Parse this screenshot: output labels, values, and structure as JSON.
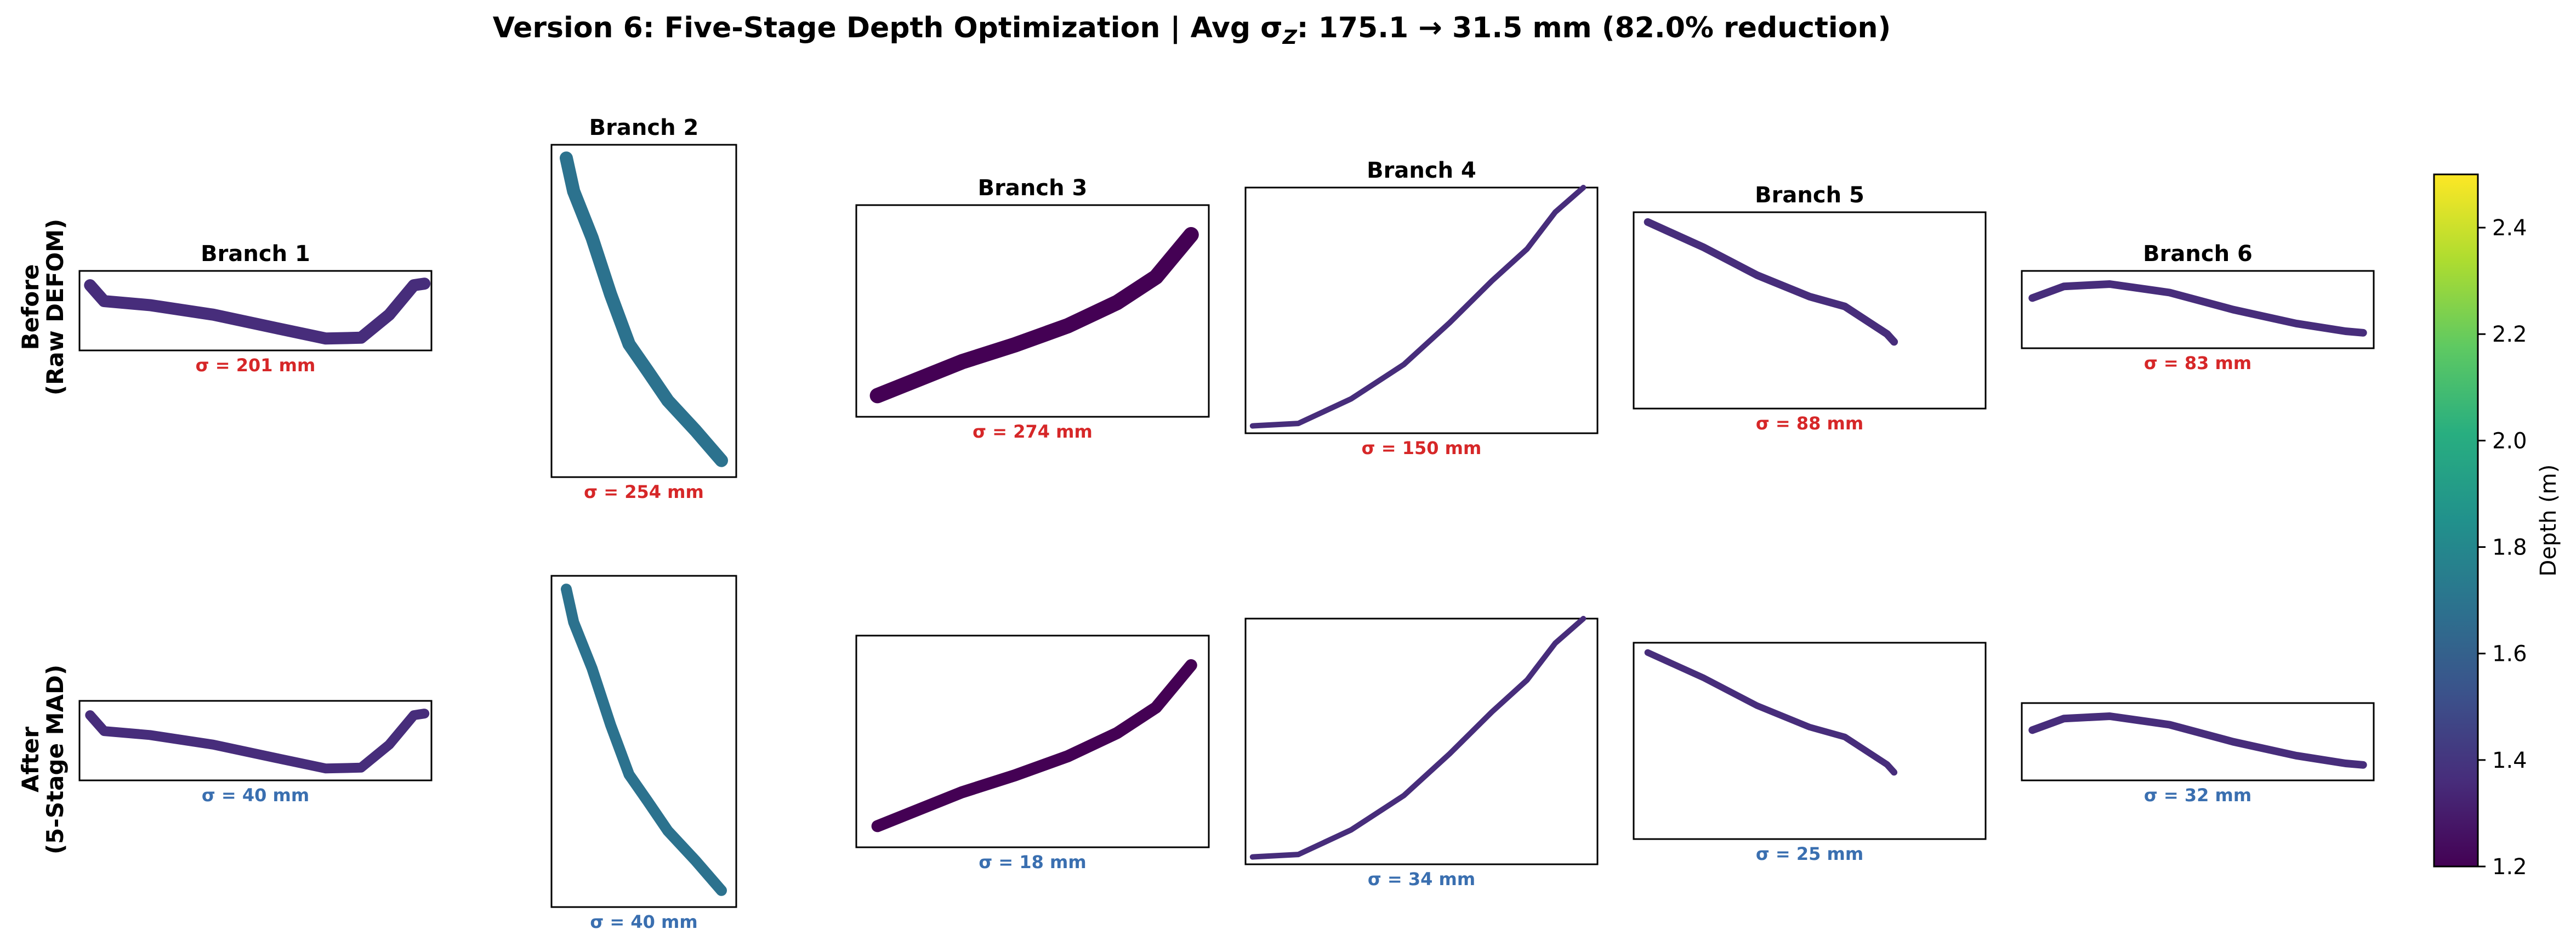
{
  "figure": {
    "title": "Version 6: Five-Stage Depth Optimization  |  Avg σ",
    "title_subscript": "Z",
    "title_suffix": ": 175.1 → 31.5 mm  (82.0% reduction)"
  },
  "rows": [
    {
      "label_line1": "Before",
      "label_line2": "(Raw DEFOM)"
    },
    {
      "label_line1": "After",
      "label_line2": "(5-Stage MAD)"
    }
  ],
  "colors": {
    "sigma_before": "#d62728",
    "sigma_after": "#3a6fb0",
    "colormap": [
      "#440154",
      "#472d7b",
      "#3b528b",
      "#2c728e",
      "#21918c",
      "#28ae80",
      "#5ec962",
      "#addc30",
      "#fde725"
    ]
  },
  "chart_data": {
    "type": "scatter",
    "title": "Version 6: Five-Stage Depth Optimization  |  Avg σZ: 175.1 → 31.5 mm  (82.0% reduction)",
    "avg_sigma_z_before_mm": 175.1,
    "avg_sigma_z_after_mm": 31.5,
    "reduction_pct": 82.0,
    "colorbar": {
      "label": "Depth (m)",
      "range": [
        1.2,
        2.5
      ],
      "ticks": [
        "1.2",
        "1.4",
        "1.6",
        "1.8",
        "2.0",
        "2.2",
        "2.4"
      ]
    },
    "branches": [
      {
        "name": "Branch 1",
        "sigma_before_mm": 201,
        "sigma_after_mm": 40,
        "sigma_before_label": "σ = 201 mm",
        "sigma_after_label": "σ = 40 mm",
        "depth_before_m": 1.38,
        "depth_after_m": 1.36,
        "curve": [
          [
            0.03,
            0.18
          ],
          [
            0.07,
            0.38
          ],
          [
            0.2,
            0.43
          ],
          [
            0.38,
            0.55
          ],
          [
            0.56,
            0.72
          ],
          [
            0.7,
            0.85
          ],
          [
            0.8,
            0.84
          ],
          [
            0.88,
            0.55
          ],
          [
            0.95,
            0.18
          ],
          [
            0.98,
            0.16
          ]
        ]
      },
      {
        "name": "Branch 2",
        "sigma_before_mm": 254,
        "sigma_after_mm": 40,
        "sigma_before_label": "σ = 254 mm",
        "sigma_after_label": "σ = 40 mm",
        "depth_before_m": 1.62,
        "depth_after_m": 1.62,
        "curve": [
          [
            0.08,
            0.04
          ],
          [
            0.12,
            0.14
          ],
          [
            0.22,
            0.28
          ],
          [
            0.32,
            0.45
          ],
          [
            0.42,
            0.6
          ],
          [
            0.52,
            0.68
          ],
          [
            0.63,
            0.77
          ],
          [
            0.78,
            0.86
          ],
          [
            0.92,
            0.95
          ]
        ]
      },
      {
        "name": "Branch 3",
        "sigma_before_mm": 274,
        "sigma_after_mm": 18,
        "sigma_before_label": "σ = 274 mm",
        "sigma_after_label": "σ = 18 mm",
        "depth_before_m": 1.22,
        "depth_after_m": 1.2,
        "curve": [
          [
            0.06,
            0.9
          ],
          [
            0.15,
            0.84
          ],
          [
            0.3,
            0.74
          ],
          [
            0.45,
            0.66
          ],
          [
            0.6,
            0.57
          ],
          [
            0.74,
            0.46
          ],
          [
            0.85,
            0.34
          ],
          [
            0.95,
            0.14
          ]
        ]
      },
      {
        "name": "Branch 4",
        "sigma_before_mm": 150,
        "sigma_after_mm": 34,
        "sigma_before_label": "σ = 150 mm",
        "sigma_after_label": "σ = 34 mm",
        "depth_before_m": 1.3,
        "depth_after_m": 1.3,
        "curve": [
          [
            0.02,
            0.97
          ],
          [
            0.15,
            0.96
          ],
          [
            0.3,
            0.86
          ],
          [
            0.45,
            0.72
          ],
          [
            0.58,
            0.55
          ],
          [
            0.7,
            0.38
          ],
          [
            0.8,
            0.25
          ],
          [
            0.88,
            0.1
          ],
          [
            0.96,
            0.0
          ]
        ]
      },
      {
        "name": "Branch 5",
        "sigma_before_mm": 88,
        "sigma_after_mm": 25,
        "sigma_before_label": "σ = 88 mm",
        "sigma_after_label": "σ = 25 mm",
        "depth_before_m": 1.35,
        "depth_after_m": 1.35,
        "curve": [
          [
            0.04,
            0.05
          ],
          [
            0.2,
            0.18
          ],
          [
            0.35,
            0.32
          ],
          [
            0.5,
            0.43
          ],
          [
            0.6,
            0.48
          ],
          [
            0.72,
            0.62
          ],
          [
            0.74,
            0.66
          ]
        ]
      },
      {
        "name": "Branch 6",
        "sigma_before_mm": 83,
        "sigma_after_mm": 32,
        "sigma_before_label": "σ = 83 mm",
        "sigma_after_label": "σ = 32 mm",
        "depth_before_m": 1.42,
        "depth_after_m": 1.41,
        "curve": [
          [
            0.03,
            0.35
          ],
          [
            0.12,
            0.2
          ],
          [
            0.25,
            0.17
          ],
          [
            0.42,
            0.28
          ],
          [
            0.6,
            0.5
          ],
          [
            0.78,
            0.68
          ],
          [
            0.92,
            0.78
          ],
          [
            0.97,
            0.8
          ]
        ]
      }
    ]
  }
}
